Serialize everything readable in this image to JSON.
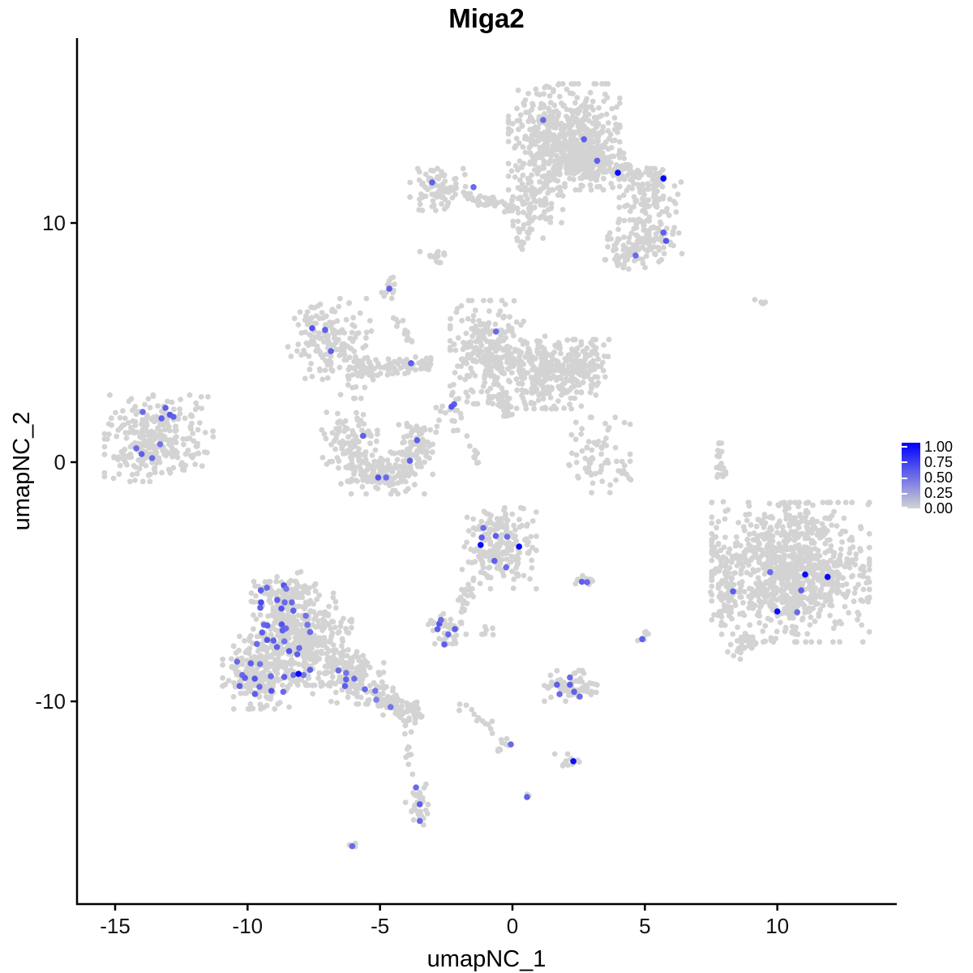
{
  "title": "Miga2",
  "axes": {
    "x_label": "umapNC_1",
    "y_label": "umapNC_2",
    "x_ticks": [
      -15,
      -10,
      -5,
      0,
      5,
      10
    ],
    "y_ticks": [
      -10,
      0,
      10
    ]
  },
  "legend": {
    "labels": [
      "1.00",
      "0.75",
      "0.50",
      "0.25",
      "0.00"
    ],
    "values": [
      1.0,
      0.75,
      0.5,
      0.25,
      0.0
    ],
    "color_low": "#d3d3d3",
    "color_high": "#0000ff"
  },
  "chart_data": {
    "type": "scatter",
    "title": "Miga2",
    "feature": "Miga2",
    "xlabel": "umapNC_1",
    "ylabel": "umapNC_2",
    "xlim": [
      -16.4,
      14.5
    ],
    "ylim": [
      -18.5,
      17.7
    ],
    "x_ticks": [
      -15,
      -10,
      -5,
      0,
      5,
      10
    ],
    "y_ticks": [
      -10,
      0,
      10
    ],
    "grid": false,
    "legend_position": "right",
    "colorbar": {
      "min": 0,
      "max": 1,
      "ticks": [
        0,
        0.25,
        0.5,
        0.75,
        1
      ],
      "low": "#d3d3d3",
      "high": "#0000ff"
    },
    "background_points_color": "#d3d3d3",
    "clusters": [
      {
        "shape": "blob",
        "cx": 1.95,
        "cy": 13.6,
        "rx": 1.8,
        "ry": 1.9,
        "n": 520
      },
      {
        "shape": "blob",
        "cx": 2.7,
        "cy": 12.8,
        "rx": 1.3,
        "ry": 0.8,
        "n": 130
      },
      {
        "shape": "blob",
        "cx": 0.85,
        "cy": 11.0,
        "rx": 0.9,
        "ry": 1.4,
        "n": 100
      },
      {
        "shape": "arm",
        "x1": 2.0,
        "y1": 12.7,
        "x2": 5.6,
        "y2": 11.75,
        "w": 0.55,
        "n": 170
      },
      {
        "shape": "blob",
        "cx": 5.2,
        "cy": 10.9,
        "rx": 1.0,
        "ry": 0.95,
        "n": 85
      },
      {
        "shape": "blob",
        "cx": 5.0,
        "cy": 9.25,
        "rx": 1.2,
        "ry": 0.75,
        "n": 100
      },
      {
        "shape": "blob",
        "cx": 4.25,
        "cy": 8.6,
        "rx": 0.65,
        "ry": 0.45,
        "n": 35
      },
      {
        "shape": "arm",
        "x1": 0.6,
        "y1": 10.2,
        "x2": 0.3,
        "y2": 8.9,
        "w": 0.25,
        "n": 14
      },
      {
        "shape": "blob",
        "cx": -2.7,
        "cy": 11.4,
        "rx": 1.0,
        "ry": 0.75,
        "n": 85
      },
      {
        "shape": "arm",
        "x1": -1.8,
        "y1": 11.15,
        "x2": 0.2,
        "y2": 10.6,
        "w": 0.3,
        "n": 45
      },
      {
        "shape": "blob",
        "cx": -4.6,
        "cy": 7.3,
        "rx": 0.32,
        "ry": 0.45,
        "n": 13
      },
      {
        "shape": "blob",
        "cx": -2.85,
        "cy": 8.6,
        "rx": 0.55,
        "ry": 0.22,
        "n": 14
      },
      {
        "shape": "blob",
        "cx": -6.9,
        "cy": 5.15,
        "rx": 1.35,
        "ry": 1.45,
        "n": 160
      },
      {
        "shape": "blob",
        "cx": -5.95,
        "cy": 3.6,
        "rx": 0.75,
        "ry": 0.8,
        "n": 30
      },
      {
        "shape": "arm",
        "x1": -6.1,
        "y1": 3.9,
        "x2": -3.05,
        "y2": 4.1,
        "w": 0.32,
        "n": 80
      },
      {
        "shape": "arm",
        "x1": -4.45,
        "y1": 6.1,
        "x2": -3.85,
        "y2": 4.9,
        "w": 0.2,
        "n": 14
      },
      {
        "shape": "blob",
        "cx": -0.95,
        "cy": 4.6,
        "rx": 1.2,
        "ry": 1.85,
        "n": 290
      },
      {
        "shape": "blob",
        "cx": 1.2,
        "cy": 3.75,
        "rx": 1.2,
        "ry": 1.3,
        "n": 230
      },
      {
        "shape": "blob",
        "cx": 2.65,
        "cy": 3.9,
        "rx": 0.85,
        "ry": 1.05,
        "n": 120
      },
      {
        "shape": "arm",
        "x1": -0.55,
        "y1": 2.9,
        "x2": -0.1,
        "y2": 1.7,
        "w": 0.3,
        "n": 26
      },
      {
        "shape": "blob",
        "cx": 3.1,
        "cy": 0.3,
        "rx": 1.15,
        "ry": 1.35,
        "n": 65
      },
      {
        "shape": "blob",
        "cx": -2.3,
        "cy": 1.9,
        "rx": 0.5,
        "ry": 0.75,
        "n": 22
      },
      {
        "shape": "arm",
        "x1": -1.5,
        "y1": 0.8,
        "x2": -1.35,
        "y2": -0.3,
        "w": 0.18,
        "n": 10
      },
      {
        "shape": "blob",
        "cx": -6.15,
        "cy": 0.8,
        "rx": 0.9,
        "ry": 1.1,
        "n": 100
      },
      {
        "shape": "blob",
        "cx": -4.9,
        "cy": -0.45,
        "rx": 1.35,
        "ry": 0.75,
        "n": 150
      },
      {
        "shape": "blob",
        "cx": -3.65,
        "cy": 0.6,
        "rx": 0.55,
        "ry": 0.95,
        "n": 75
      },
      {
        "shape": "blob",
        "cx": -13.65,
        "cy": 1.0,
        "rx": 1.5,
        "ry": 1.55,
        "n": 270
      },
      {
        "shape": "blob",
        "cx": -11.9,
        "cy": 1.1,
        "rx": 0.6,
        "ry": 1.4,
        "n": 26
      },
      {
        "shape": "blob",
        "cx": -0.5,
        "cy": -3.6,
        "rx": 1.2,
        "ry": 1.45,
        "n": 200
      },
      {
        "shape": "arm",
        "x1": -1.3,
        "y1": -4.9,
        "x2": -2.0,
        "y2": -5.9,
        "w": 0.25,
        "n": 18
      },
      {
        "shape": "blob",
        "cx": 2.7,
        "cy": -5.0,
        "rx": 0.42,
        "ry": 0.22,
        "n": 12
      },
      {
        "shape": "blob",
        "cx": -2.45,
        "cy": -6.95,
        "rx": 0.62,
        "ry": 0.55,
        "n": 45
      },
      {
        "shape": "arm",
        "x1": -1.95,
        "y1": -5.6,
        "x2": -1.85,
        "y2": -6.3,
        "w": 0.12,
        "n": 6
      },
      {
        "shape": "blob",
        "cx": -0.85,
        "cy": -7.1,
        "rx": 0.28,
        "ry": 0.32,
        "n": 6
      },
      {
        "shape": "blob",
        "cx": -8.6,
        "cy": -5.4,
        "rx": 1.0,
        "ry": 0.7,
        "n": 95
      },
      {
        "shape": "blob",
        "cx": -8.0,
        "cy": -7.4,
        "rx": 1.65,
        "ry": 1.65,
        "n": 400
      },
      {
        "shape": "blob",
        "cx": -9.6,
        "cy": -8.8,
        "rx": 1.15,
        "ry": 1.3,
        "n": 210
      },
      {
        "shape": "blob",
        "cx": -6.2,
        "cy": -9.0,
        "rx": 1.15,
        "ry": 0.95,
        "n": 140
      },
      {
        "shape": "arm",
        "x1": -5.3,
        "y1": -9.6,
        "x2": -3.5,
        "y2": -10.8,
        "w": 0.55,
        "n": 100
      },
      {
        "shape": "blob",
        "cx": 10.5,
        "cy": -4.6,
        "rx": 2.55,
        "ry": 2.5,
        "n": 950
      },
      {
        "shape": "blob",
        "cx": 8.0,
        "cy": -5.3,
        "rx": 0.5,
        "ry": 1.3,
        "n": 60
      },
      {
        "shape": "arm",
        "x1": 9.0,
        "y1": -7.2,
        "x2": 8.35,
        "y2": -8.1,
        "w": 0.35,
        "n": 30
      },
      {
        "shape": "arm",
        "x1": 7.78,
        "y1": 0.9,
        "x2": 7.92,
        "y2": -0.9,
        "w": 0.16,
        "n": 24
      },
      {
        "shape": "blob",
        "cx": 7.96,
        "cy": -1.73,
        "rx": 0.08,
        "ry": 0.08,
        "n": 1
      },
      {
        "shape": "blob",
        "cx": 9.43,
        "cy": 6.78,
        "rx": 0.24,
        "ry": 0.18,
        "n": 5
      },
      {
        "shape": "blob",
        "cx": 4.93,
        "cy": -7.3,
        "rx": 0.28,
        "ry": 0.42,
        "n": 8
      },
      {
        "shape": "blob",
        "cx": 2.2,
        "cy": -9.35,
        "rx": 0.85,
        "ry": 0.55,
        "n": 70
      },
      {
        "shape": "arm",
        "x1": -2.0,
        "y1": -10.1,
        "x2": -0.15,
        "y2": -11.65,
        "w": 0.22,
        "n": 15
      },
      {
        "shape": "arm",
        "x1": -0.15,
        "y1": -11.65,
        "x2": -0.65,
        "y2": -12.3,
        "w": 0.18,
        "n": 7
      },
      {
        "shape": "blob",
        "cx": 2.3,
        "cy": -12.5,
        "rx": 0.35,
        "ry": 0.28,
        "n": 12
      },
      {
        "shape": "blob",
        "cx": 1.6,
        "cy": -12.15,
        "rx": 0.08,
        "ry": 0.08,
        "n": 1
      },
      {
        "shape": "blob",
        "cx": 0.55,
        "cy": -14.0,
        "rx": 0.14,
        "ry": 0.1,
        "n": 3
      },
      {
        "shape": "arm",
        "x1": -4.15,
        "y1": -11.3,
        "x2": -3.7,
        "y2": -13.1,
        "w": 0.18,
        "n": 11
      },
      {
        "shape": "blob",
        "cx": -3.6,
        "cy": -14.3,
        "rx": 0.38,
        "ry": 0.85,
        "n": 38
      },
      {
        "shape": "blob",
        "cx": -6.05,
        "cy": -16.05,
        "rx": 0.2,
        "ry": 0.15,
        "n": 4
      },
      {
        "shape": "arm",
        "x1": 4.25,
        "y1": 0.5,
        "x2": 4.35,
        "y2": -0.75,
        "w": 0.18,
        "n": 7
      }
    ],
    "expressing_points": [
      [
        1.16,
        14.3,
        0.5
      ],
      [
        2.7,
        13.5,
        0.55
      ],
      [
        3.2,
        12.6,
        0.55
      ],
      [
        3.98,
        12.1,
        0.95
      ],
      [
        5.7,
        11.86,
        0.98
      ],
      [
        5.7,
        9.6,
        0.55
      ],
      [
        5.8,
        9.25,
        0.6
      ],
      [
        4.65,
        8.64,
        0.5
      ],
      [
        -3.03,
        11.7,
        0.55
      ],
      [
        -1.47,
        11.5,
        0.5
      ],
      [
        -4.65,
        7.25,
        0.55
      ],
      [
        -7.56,
        5.6,
        0.6
      ],
      [
        -7.07,
        5.53,
        0.55
      ],
      [
        -6.85,
        4.64,
        0.55
      ],
      [
        -3.83,
        4.14,
        0.55
      ],
      [
        -0.62,
        5.46,
        0.5
      ],
      [
        -2.2,
        2.42,
        0.55
      ],
      [
        -2.3,
        2.32,
        0.6
      ],
      [
        -5.64,
        1.1,
        0.55
      ],
      [
        -3.6,
        0.92,
        0.55
      ],
      [
        -3.87,
        0.06,
        0.55
      ],
      [
        -5.07,
        -0.64,
        0.6
      ],
      [
        -4.77,
        -0.64,
        0.5
      ],
      [
        -13.96,
        2.1,
        0.5
      ],
      [
        -13.1,
        2.27,
        0.55
      ],
      [
        -12.93,
        1.98,
        0.6
      ],
      [
        -12.8,
        1.9,
        0.55
      ],
      [
        -13.25,
        1.83,
        0.55
      ],
      [
        -14.2,
        0.58,
        0.5
      ],
      [
        -14.0,
        0.34,
        0.55
      ],
      [
        -13.6,
        0.17,
        0.5
      ],
      [
        -13.3,
        0.75,
        0.45
      ],
      [
        -1.1,
        -2.75,
        0.5
      ],
      [
        -1.16,
        -3.15,
        0.55
      ],
      [
        -0.63,
        -3.08,
        0.55
      ],
      [
        -0.2,
        -3.12,
        0.5
      ],
      [
        -1.2,
        -3.46,
        0.95
      ],
      [
        0.25,
        -3.53,
        0.97
      ],
      [
        -0.68,
        -4.13,
        0.55
      ],
      [
        -0.24,
        -4.4,
        0.5
      ],
      [
        2.62,
        -5.0,
        0.55
      ],
      [
        2.82,
        -5.02,
        0.5
      ],
      [
        -2.76,
        -6.75,
        0.6
      ],
      [
        -2.83,
        -6.98,
        0.55
      ],
      [
        -2.7,
        -6.6,
        0.5
      ],
      [
        -2.17,
        -6.98,
        0.55
      ],
      [
        -2.42,
        -7.2,
        0.5
      ],
      [
        -2.57,
        -7.62,
        0.55
      ],
      [
        -9.5,
        -5.36,
        0.55
      ],
      [
        -9.27,
        -5.25,
        0.5
      ],
      [
        -8.63,
        -5.15,
        0.6
      ],
      [
        -8.54,
        -5.29,
        0.45
      ],
      [
        -8.88,
        -5.76,
        0.55
      ],
      [
        -8.6,
        -5.86,
        0.5
      ],
      [
        -9.49,
        -5.86,
        0.65
      ],
      [
        -9.52,
        -6.08,
        0.55
      ],
      [
        -8.33,
        -5.86,
        0.5
      ],
      [
        -8.72,
        -6.12,
        0.6
      ],
      [
        -8.27,
        -6.21,
        0.55
      ],
      [
        -7.8,
        -6.42,
        0.45
      ],
      [
        -9.38,
        -6.8,
        0.5
      ],
      [
        -9.25,
        -6.83,
        0.55
      ],
      [
        -8.71,
        -6.78,
        0.6
      ],
      [
        -8.55,
        -6.95,
        0.5
      ],
      [
        -8.68,
        -7.03,
        0.55
      ],
      [
        -7.74,
        -6.8,
        0.45
      ],
      [
        -7.64,
        -7.1,
        0.5
      ],
      [
        -9.45,
        -7.12,
        0.55
      ],
      [
        -9.26,
        -7.43,
        0.6
      ],
      [
        -9.02,
        -7.46,
        0.55
      ],
      [
        -9.65,
        -7.6,
        0.5
      ],
      [
        -8.61,
        -7.49,
        0.45
      ],
      [
        -8.89,
        -7.73,
        0.55
      ],
      [
        -8.05,
        -7.77,
        0.5
      ],
      [
        -8.43,
        -7.9,
        0.6
      ],
      [
        -8.12,
        -8.03,
        0.55
      ],
      [
        -10.4,
        -8.34,
        0.5
      ],
      [
        -9.88,
        -8.41,
        0.55
      ],
      [
        -9.53,
        -8.44,
        0.45
      ],
      [
        -10.2,
        -8.9,
        0.5
      ],
      [
        -10.1,
        -9.02,
        0.55
      ],
      [
        -9.73,
        -9.05,
        0.6
      ],
      [
        -9.12,
        -8.95,
        0.5
      ],
      [
        -8.61,
        -8.98,
        0.55
      ],
      [
        -8.27,
        -8.9,
        0.5
      ],
      [
        -7.89,
        -8.9,
        0.45
      ],
      [
        -10.3,
        -9.36,
        0.55
      ],
      [
        -9.55,
        -9.39,
        0.5
      ],
      [
        -9.1,
        -9.56,
        0.6
      ],
      [
        -9.72,
        -9.69,
        0.55
      ],
      [
        -8.65,
        -9.6,
        0.5
      ],
      [
        -7.64,
        -8.68,
        0.55
      ],
      [
        -6.57,
        -8.71,
        0.5
      ],
      [
        -6.28,
        -8.81,
        0.45
      ],
      [
        -6.28,
        -9.08,
        0.55
      ],
      [
        -5.97,
        -9.05,
        0.5
      ],
      [
        -6.32,
        -9.36,
        0.55
      ],
      [
        -5.57,
        -9.49,
        0.5
      ],
      [
        -5.18,
        -9.56,
        0.45
      ],
      [
        -5.14,
        -9.93,
        0.4
      ],
      [
        -4.6,
        -10.24,
        0.45
      ],
      [
        -8.08,
        -8.85,
        0.97
      ],
      [
        9.73,
        -4.6,
        0.5
      ],
      [
        10.9,
        -5.36,
        0.55
      ],
      [
        10.75,
        -6.27,
        0.5
      ],
      [
        8.33,
        -5.4,
        0.55
      ],
      [
        11.05,
        -4.7,
        0.95
      ],
      [
        11.9,
        -4.8,
        0.97
      ],
      [
        10.0,
        -6.24,
        0.95
      ],
      [
        4.9,
        -7.4,
        0.55
      ],
      [
        1.68,
        -9.3,
        0.55
      ],
      [
        2.17,
        -9.0,
        0.5
      ],
      [
        2.17,
        -9.3,
        0.55
      ],
      [
        1.78,
        -9.7,
        0.5
      ],
      [
        2.33,
        -9.6,
        0.55
      ],
      [
        2.54,
        -9.8,
        0.5
      ],
      [
        -0.06,
        -11.8,
        0.5
      ],
      [
        2.3,
        -12.5,
        0.95
      ],
      [
        0.55,
        -14.0,
        0.55
      ],
      [
        -3.64,
        -13.6,
        0.5
      ],
      [
        -3.5,
        -14.3,
        0.55
      ],
      [
        -3.5,
        -15.0,
        0.5
      ],
      [
        -6.05,
        -16.05,
        0.5
      ]
    ]
  }
}
